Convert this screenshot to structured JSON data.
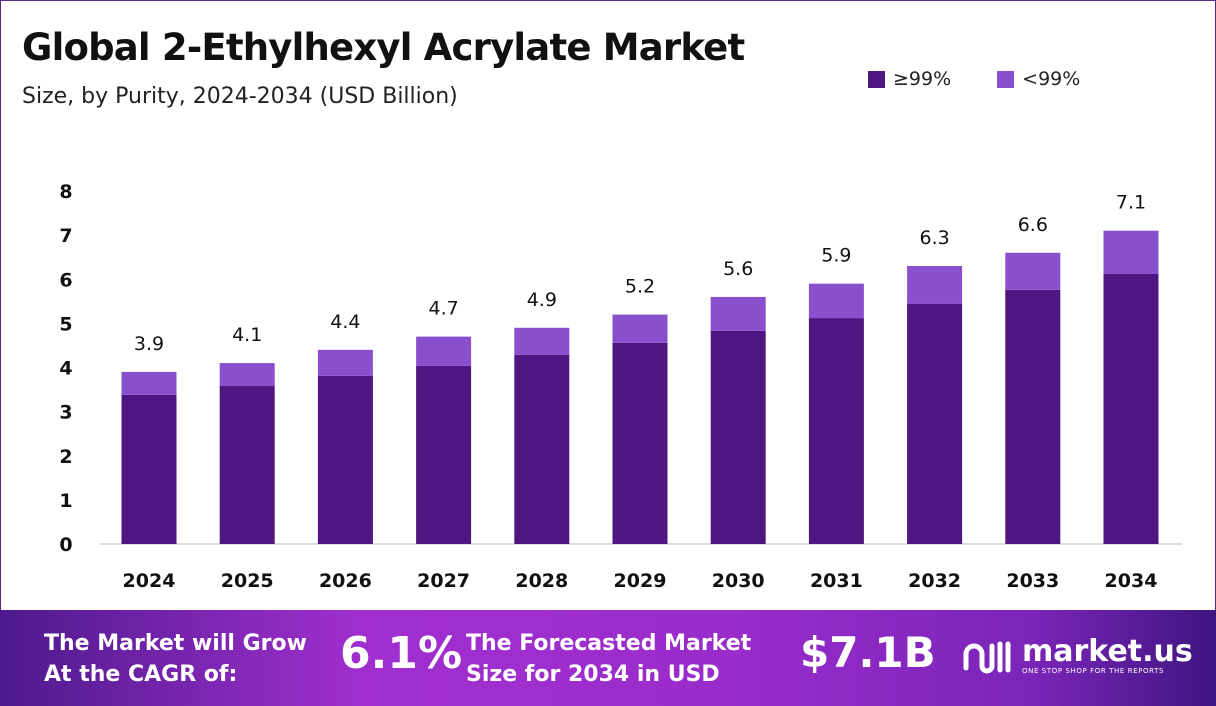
{
  "chart_data": {
    "type": "bar",
    "stacked": true,
    "title": "Global 2-Ethylhexyl Acrylate Market",
    "subtitle": "Size, by Purity, 2024-2034 (USD Billion)",
    "categories": [
      "2024",
      "2025",
      "2026",
      "2027",
      "2028",
      "2029",
      "2030",
      "2031",
      "2032",
      "2033",
      "2034"
    ],
    "series": [
      {
        "name": "≥99%",
        "color": "#4e1681",
        "values": [
          3.38,
          3.58,
          3.81,
          4.04,
          4.29,
          4.56,
          4.83,
          5.12,
          5.44,
          5.76,
          6.12
        ]
      },
      {
        "name": "<99%",
        "color": "#8a4fcc",
        "values": [
          0.52,
          0.52,
          0.59,
          0.66,
          0.61,
          0.64,
          0.77,
          0.78,
          0.86,
          0.84,
          0.98
        ]
      }
    ],
    "totals": [
      "3.9",
      "4.1",
      "4.4",
      "4.7",
      "4.9",
      "5.2",
      "5.6",
      "5.9",
      "6.3",
      "6.6",
      "7.1"
    ],
    "ylim": [
      0,
      8
    ],
    "yticks": [
      "0",
      "1",
      "2",
      "3",
      "4",
      "5",
      "6",
      "7",
      "8"
    ],
    "grid": false,
    "legend_position": "top-right"
  },
  "footer": {
    "cagr_label_1": "The Market will Grow",
    "cagr_label_2": "At the CAGR of:",
    "cagr_value": "6.1%",
    "forecast_label_1": "The Forecasted Market",
    "forecast_label_2": "Size for 2034 in USD",
    "forecast_value": "$7.1B",
    "brand": "market.us",
    "tagline": "ONE STOP SHOP FOR THE REPORTS"
  }
}
